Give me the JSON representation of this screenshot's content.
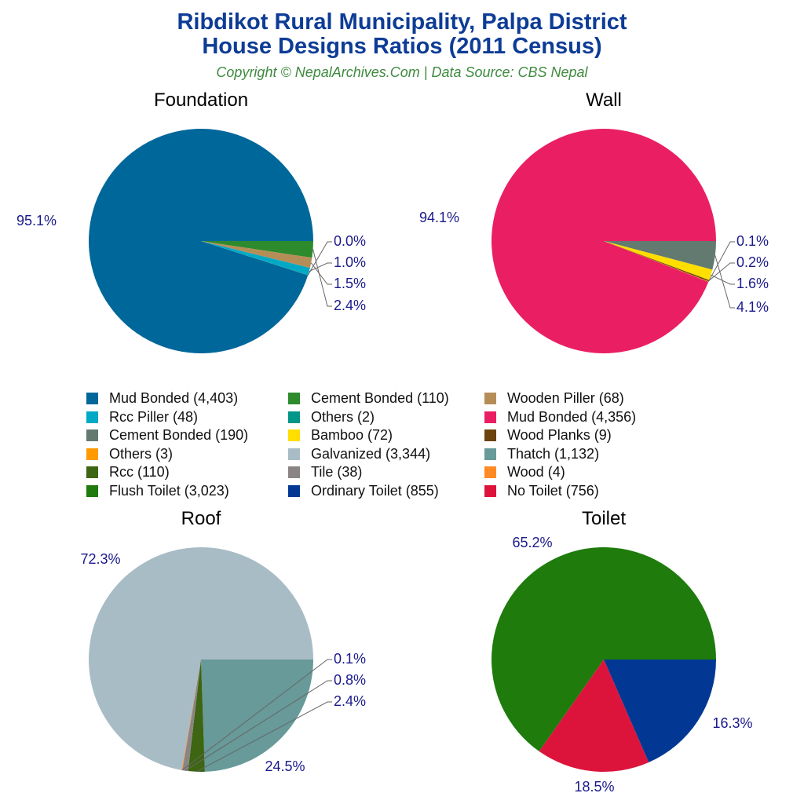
{
  "header": {
    "title_line1": "Ribdikot Rural Municipality, Palpa District",
    "title_line2": "House Designs Ratios (2011 Census)",
    "subtitle": "Copyright © NepalArchives.Com | Data Source: CBS Nepal"
  },
  "colors": {
    "title": "#0d3c96",
    "subtitle": "#3f8a3f",
    "percent_label": "#1a1a8c",
    "leader_line": "#666666"
  },
  "legend": {
    "columns": [
      [
        {
          "label": "Mud Bonded (4,403)",
          "color": "#00679a"
        },
        {
          "label": "Rcc Piller (48)",
          "color": "#00a9c6"
        },
        {
          "label": "Cement Bonded (190)",
          "color": "#637a70"
        },
        {
          "label": "Others (3)",
          "color": "#ff9a00"
        },
        {
          "label": "Rcc (110)",
          "color": "#3d6512"
        },
        {
          "label": "Flush Toilet (3,023)",
          "color": "#1e7b0c"
        }
      ],
      [
        {
          "label": "Cement Bonded (110)",
          "color": "#2d8a2d"
        },
        {
          "label": "Others (2)",
          "color": "#009688"
        },
        {
          "label": "Bamboo (72)",
          "color": "#ffde00"
        },
        {
          "label": "Galvanized (3,344)",
          "color": "#a8bcc6"
        },
        {
          "label": "Tile (38)",
          "color": "#8a8584"
        },
        {
          "label": "Ordinary Toilet (855)",
          "color": "#023893"
        }
      ],
      [
        {
          "label": "Wooden Piller (68)",
          "color": "#b58e57"
        },
        {
          "label": "Mud Bonded (4,356)",
          "color": "#ea1f63"
        },
        {
          "label": "Wood Planks (9)",
          "color": "#6b430c"
        },
        {
          "label": "Thatch (1,132)",
          "color": "#679a99"
        },
        {
          "label": "Wood (4)",
          "color": "#ff8a23"
        },
        {
          "label": "No Toilet (756)",
          "color": "#dc143c"
        }
      ]
    ]
  },
  "chart_data": [
    {
      "type": "pie",
      "title": "Foundation",
      "categories": [
        "Mud Bonded",
        "Cement Bonded",
        "Wooden Piller",
        "Rcc Piller",
        "Others"
      ],
      "values": [
        4403,
        110,
        68,
        48,
        2
      ],
      "percentages": [
        "95.1%",
        "2.4%",
        "1.5%",
        "1.0%",
        "0.0%"
      ],
      "colors": [
        "#00679a",
        "#2d8a2d",
        "#b58e57",
        "#00a9c6",
        "#009688"
      ]
    },
    {
      "type": "pie",
      "title": "Wall",
      "categories": [
        "Mud Bonded",
        "Cement Bonded",
        "Bamboo",
        "Wood Planks",
        "Others"
      ],
      "values": [
        4356,
        190,
        72,
        9,
        3
      ],
      "percentages": [
        "94.1%",
        "4.1%",
        "1.6%",
        "0.2%",
        "0.1%"
      ],
      "colors": [
        "#ea1f63",
        "#637a70",
        "#ffde00",
        "#6b430c",
        "#ff9a00"
      ]
    },
    {
      "type": "pie",
      "title": "Roof",
      "categories": [
        "Galvanized",
        "Thatch",
        "Rcc",
        "Tile",
        "Wood"
      ],
      "values": [
        3344,
        1132,
        110,
        38,
        4
      ],
      "percentages": [
        "72.3%",
        "24.5%",
        "2.4%",
        "0.8%",
        "0.1%"
      ],
      "colors": [
        "#a8bcc6",
        "#679a99",
        "#3d6512",
        "#8a8584",
        "#ff8a23"
      ]
    },
    {
      "type": "pie",
      "title": "Toilet",
      "categories": [
        "Flush Toilet",
        "Ordinary Toilet",
        "No Toilet"
      ],
      "values": [
        3023,
        855,
        756
      ],
      "percentages": [
        "65.2%",
        "18.5%",
        "16.3%"
      ],
      "colors": [
        "#1e7b0c",
        "#023893",
        "#dc143c"
      ]
    }
  ]
}
